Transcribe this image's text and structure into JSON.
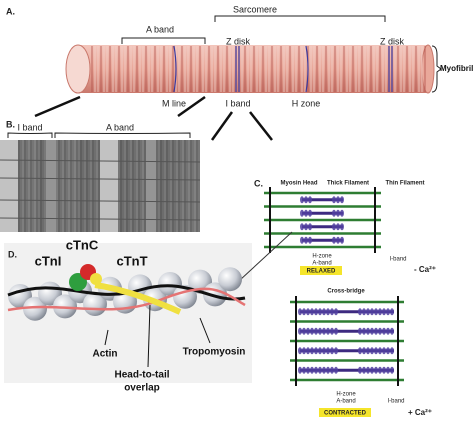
{
  "panel_a": {
    "label": "A.",
    "a_band": "A band",
    "sarcomere": "Sarcomere",
    "z_disks": [
      "Z disk",
      "Z disk"
    ],
    "myofibril": "Myofibril",
    "m_line": "M line",
    "i_band": "I band",
    "h_zone": "H zone"
  },
  "panel_b": {
    "label": "B.",
    "i_band": "I band",
    "a_band": "A band"
  },
  "panel_c": {
    "label": "C.",
    "relaxed": {
      "myosin_head": "Myosin Head",
      "thick_filament": "Thick Filament",
      "thin_filament": "Thin Filament",
      "h_zone": "H-zone",
      "a_band": "A-band",
      "i_band": "I-band",
      "state": "RELAXED",
      "calcium": "- Ca²⁺"
    },
    "contracted": {
      "cross_bridge": "Cross-bridge",
      "h_zone": "H-zone",
      "a_band": "A-band",
      "i_band": "I-band",
      "state": "CONTRACTED",
      "calcium": "+ Ca²⁺"
    }
  },
  "panel_d": {
    "label": "D.",
    "ctnc": "cTnC",
    "ctni": "cTnI",
    "ctnt": "cTnT",
    "actin": "Actin",
    "tropomyosin": "Tropomyosin",
    "overlap": [
      "Head-to-tail",
      "overlap"
    ]
  }
}
